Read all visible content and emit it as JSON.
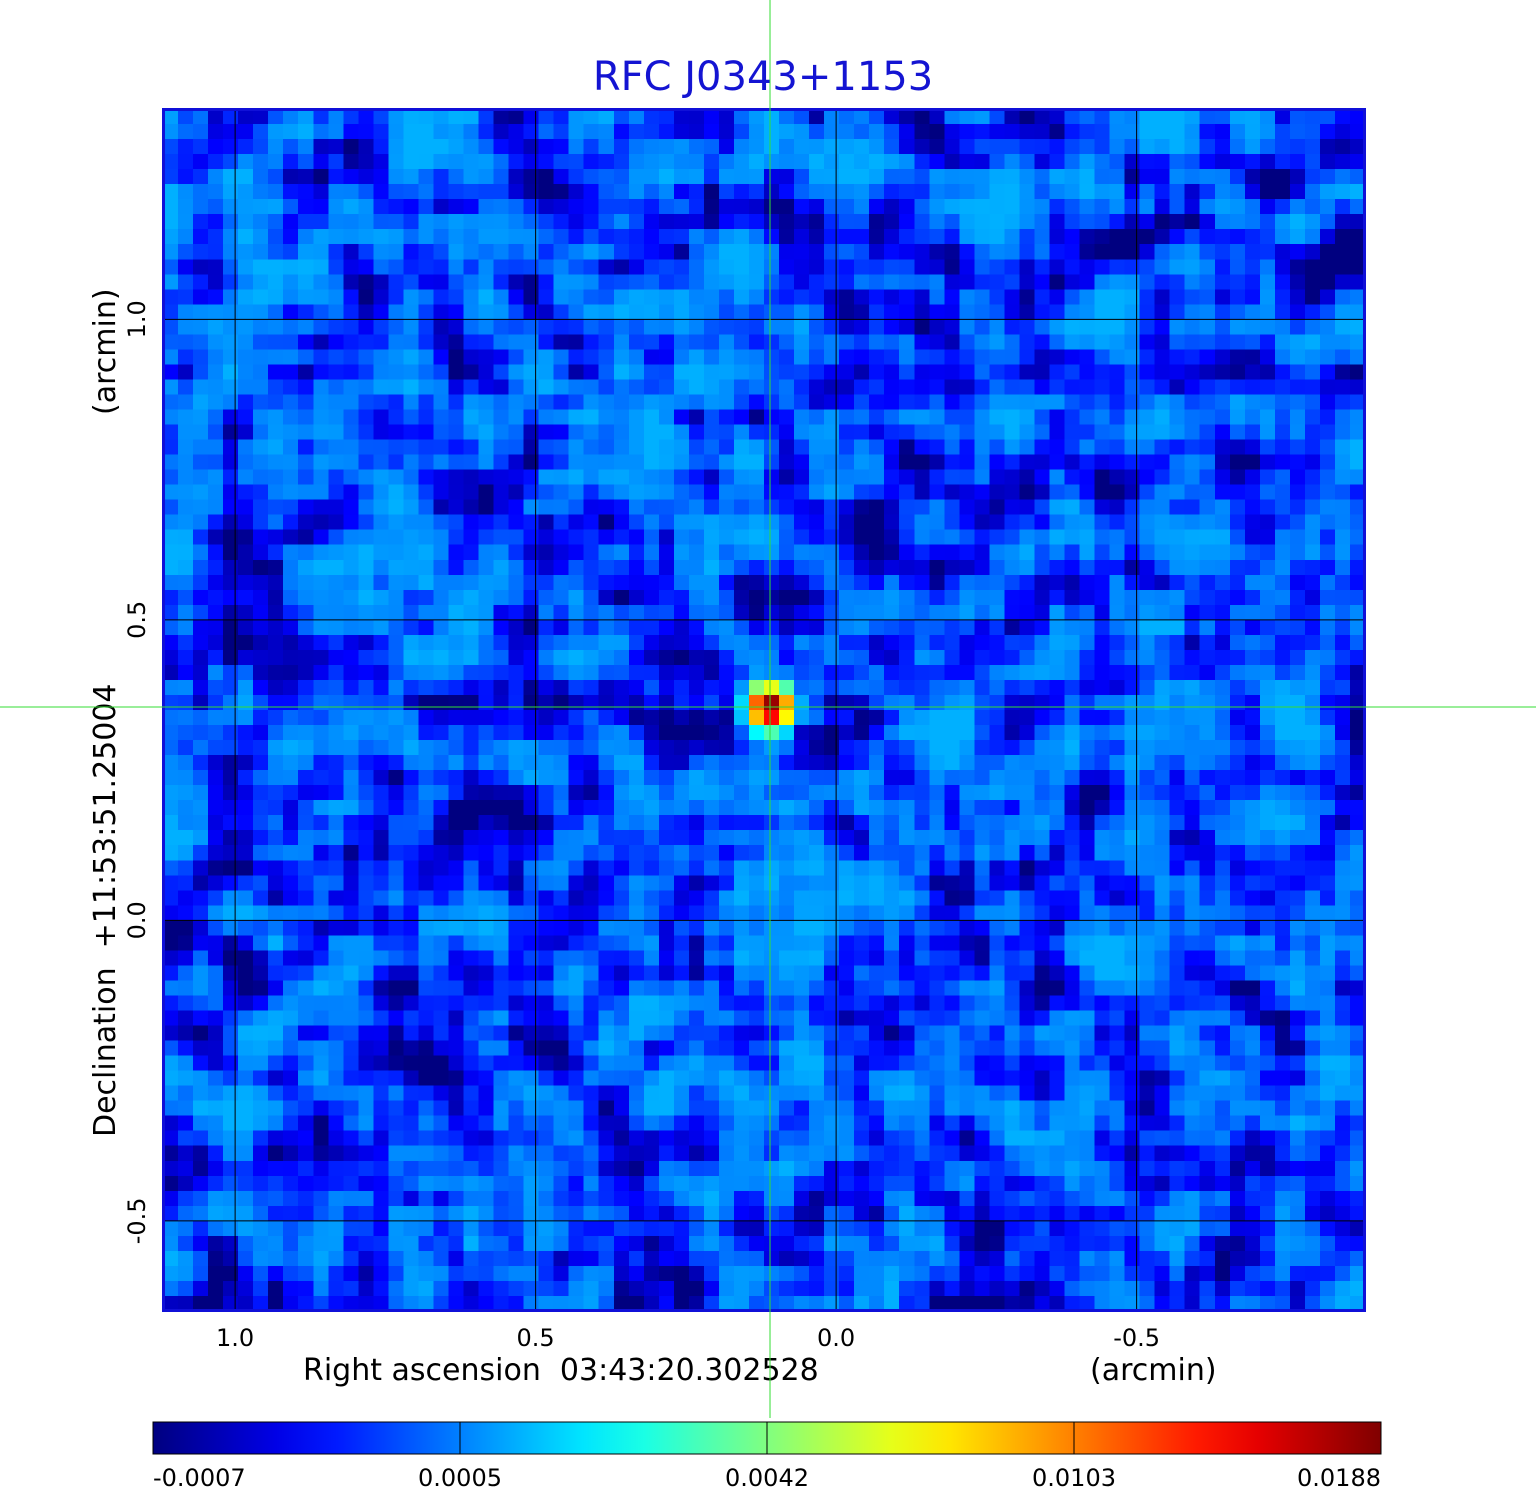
{
  "chart_data": {
    "type": "heatmap",
    "title": "RFC J0343+1153",
    "xlabel": "Right ascension  03:43:20.302528",
    "xunit": "(arcmin)",
    "ylabel": "Declination  +11:53:51.25004",
    "yunit": "(arcmin)",
    "x_range": [
      1.12,
      -0.88
    ],
    "y_range": [
      -0.65,
      1.35
    ],
    "x_ticks": [
      1.0,
      0.5,
      0.0,
      -0.5
    ],
    "x_tick_labels": [
      "1.0",
      "0.5",
      "0.0",
      "-0.5"
    ],
    "y_ticks": [
      -0.5,
      0.0,
      0.5,
      1.0
    ],
    "y_tick_labels": [
      "-0.5",
      "0.0",
      "0.5",
      "1.0"
    ],
    "grid": true,
    "crosshair": {
      "x": 0.11,
      "y": 0.355,
      "color": "#33dd33"
    },
    "source": {
      "x": 0.11,
      "y": 0.355,
      "peak": 0.0188
    },
    "noise_range": [
      -0.0007,
      0.0012
    ],
    "colormap": "jet",
    "colorbar": {
      "ticks": [
        -0.0007,
        0.0005,
        0.0042,
        0.0103,
        0.0188
      ],
      "tick_labels": [
        "-0.0007",
        "0.0005",
        "0.0042",
        "0.0103",
        "0.0188"
      ]
    }
  }
}
